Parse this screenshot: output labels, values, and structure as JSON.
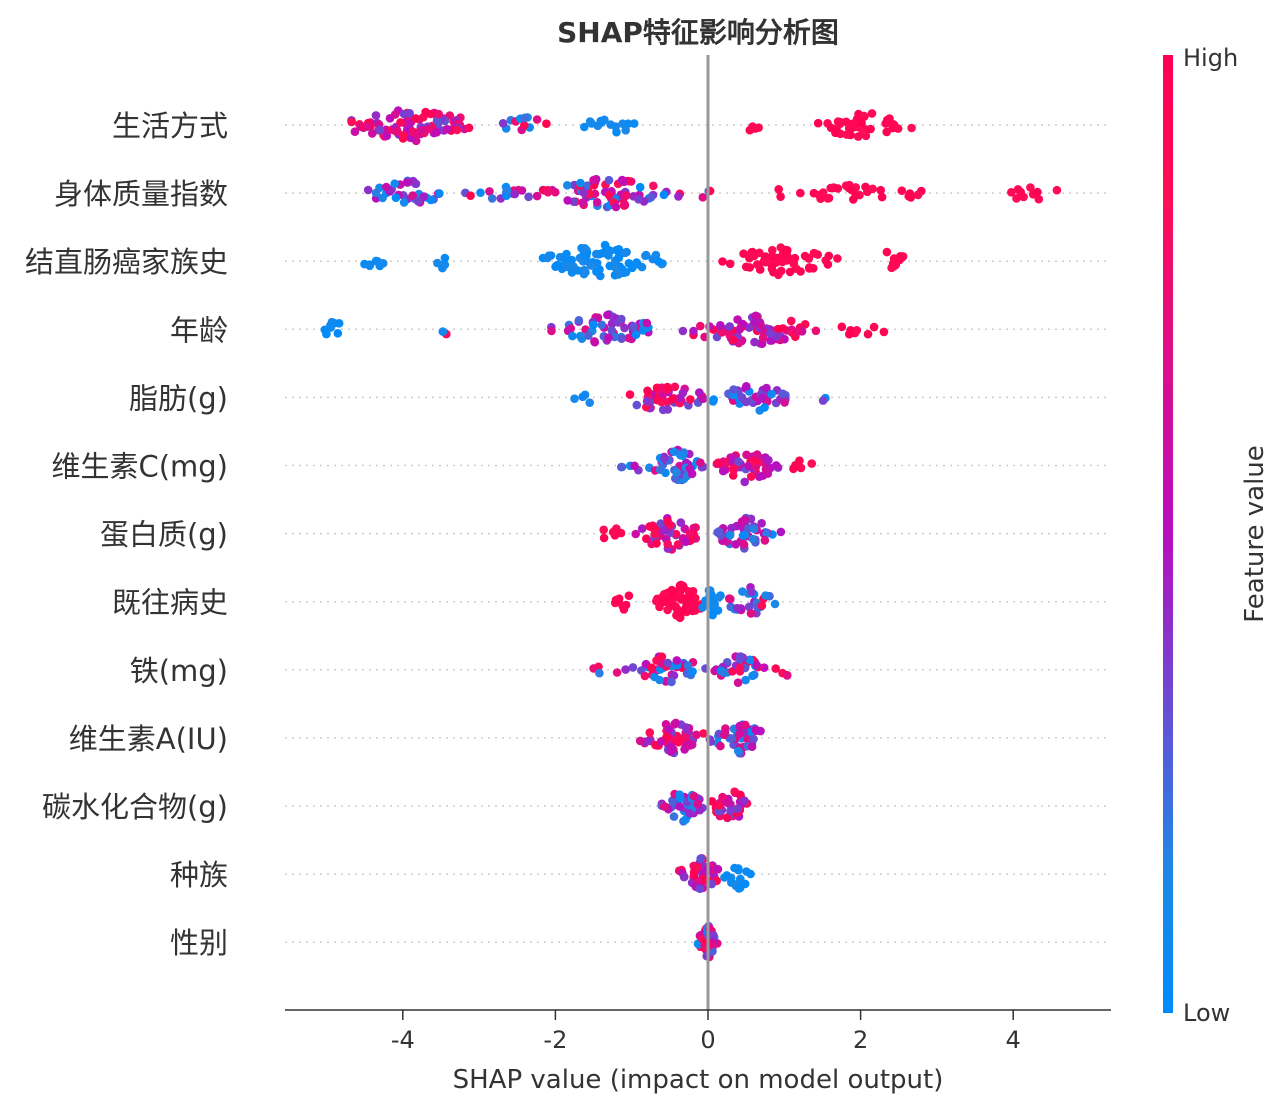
{
  "chart_data": {
    "type": "scatter",
    "subtype": "shap-beeswarm",
    "title": "SHAP特征影响分析图",
    "xlabel": "SHAP value (impact on model output)",
    "ylabel": "",
    "xlim": [
      -5.5,
      5.3
    ],
    "xticks": [
      -4,
      -2,
      0,
      2,
      4
    ],
    "xtick_labels": [
      "-4",
      "-2",
      "0",
      "2",
      "4"
    ],
    "grid": false,
    "colorbar": {
      "label": "Feature value",
      "high_label": "High",
      "low_label": "Low",
      "high_color": "#ff0d57",
      "mid_color": "#b80ec0",
      "low_color": "#1e88e5",
      "top_color": "#ff0052",
      "bottom_color": "#008bfb"
    },
    "features": [
      {
        "name": "生活方式",
        "groups": [
          {
            "range": [
              -4.9,
              -2.9
            ],
            "n": 90,
            "level": "mixed-red"
          },
          {
            "range": [
              -2.8,
              -2.0
            ],
            "n": 12,
            "level": "mixed"
          },
          {
            "range": [
              -1.7,
              -0.8
            ],
            "n": 14,
            "level": "low"
          },
          {
            "range": [
              0.5,
              0.7
            ],
            "n": 4,
            "level": "high"
          },
          {
            "range": [
              1.3,
              2.7
            ],
            "n": 45,
            "level": "high"
          }
        ]
      },
      {
        "name": "身体质量指数",
        "groups": [
          {
            "range": [
              -4.5,
              -3.3
            ],
            "n": 35,
            "level": "mixed-blue"
          },
          {
            "range": [
              -3.3,
              -2.2
            ],
            "n": 16,
            "level": "mixed"
          },
          {
            "range": [
              -2.3,
              -0.3
            ],
            "n": 75,
            "level": "mixed"
          },
          {
            "range": [
              -0.2,
              0.2
            ],
            "n": 3,
            "level": "mixed"
          },
          {
            "range": [
              0.7,
              3.0
            ],
            "n": 35,
            "level": "high"
          },
          {
            "range": [
              3.7,
              4.8
            ],
            "n": 12,
            "level": "high"
          }
        ]
      },
      {
        "name": "结直肠癌家族史",
        "groups": [
          {
            "range": [
              -4.6,
              -4.2
            ],
            "n": 8,
            "level": "low"
          },
          {
            "range": [
              -3.7,
              -3.3
            ],
            "n": 5,
            "level": "low"
          },
          {
            "range": [
              -2.4,
              -0.4
            ],
            "n": 80,
            "level": "low"
          },
          {
            "range": [
              0.1,
              1.8
            ],
            "n": 55,
            "level": "high"
          },
          {
            "range": [
              2.2,
              2.6
            ],
            "n": 10,
            "level": "high"
          }
        ]
      },
      {
        "name": "年龄",
        "groups": [
          {
            "range": [
              -5.1,
              -4.7
            ],
            "n": 8,
            "level": "low"
          },
          {
            "range": [
              -3.6,
              -3.3
            ],
            "n": 2,
            "level": "mixed"
          },
          {
            "range": [
              -2.1,
              -0.6
            ],
            "n": 55,
            "level": "mixed-blue"
          },
          {
            "range": [
              -0.4,
              1.5
            ],
            "n": 75,
            "level": "mixed-red"
          },
          {
            "range": [
              1.5,
              2.4
            ],
            "n": 8,
            "level": "high"
          }
        ]
      },
      {
        "name": "脂肪(g)",
        "groups": [
          {
            "range": [
              -1.8,
              -1.3
            ],
            "n": 4,
            "level": "low"
          },
          {
            "range": [
              -1.2,
              0.0
            ],
            "n": 40,
            "level": "mixed-red"
          },
          {
            "range": [
              0.0,
              1.2
            ],
            "n": 40,
            "level": "mixed-blue"
          },
          {
            "range": [
              1.3,
              1.7
            ],
            "n": 2,
            "level": "mixed"
          }
        ]
      },
      {
        "name": "维生素C(mg)",
        "groups": [
          {
            "range": [
              -1.2,
              -0.8
            ],
            "n": 5,
            "level": "mixed"
          },
          {
            "range": [
              -0.8,
              0.0
            ],
            "n": 45,
            "level": "mixed-blue"
          },
          {
            "range": [
              0.0,
              1.0
            ],
            "n": 50,
            "level": "mixed-red"
          },
          {
            "range": [
              1.0,
              1.4
            ],
            "n": 5,
            "level": "high"
          }
        ]
      },
      {
        "name": "蛋白质(g)",
        "groups": [
          {
            "range": [
              -1.5,
              -1.0
            ],
            "n": 6,
            "level": "high"
          },
          {
            "range": [
              -1.0,
              0.0
            ],
            "n": 50,
            "level": "mixed-red"
          },
          {
            "range": [
              0.0,
              1.0
            ],
            "n": 45,
            "level": "mixed-blue"
          }
        ]
      },
      {
        "name": "既往病史",
        "groups": [
          {
            "range": [
              -1.3,
              -0.9
            ],
            "n": 7,
            "level": "high"
          },
          {
            "range": [
              -0.7,
              0.0
            ],
            "n": 60,
            "level": "high"
          },
          {
            "range": [
              -0.1,
              0.2
            ],
            "n": 15,
            "level": "low"
          },
          {
            "range": [
              0.2,
              0.9
            ],
            "n": 25,
            "level": "mixed"
          }
        ]
      },
      {
        "name": "铁(mg)",
        "groups": [
          {
            "range": [
              -1.7,
              -1.1
            ],
            "n": 4,
            "level": "mixed"
          },
          {
            "range": [
              -1.1,
              0.0
            ],
            "n": 40,
            "level": "mixed"
          },
          {
            "range": [
              0.0,
              0.8
            ],
            "n": 35,
            "level": "mixed"
          },
          {
            "range": [
              0.8,
              1.2
            ],
            "n": 4,
            "level": "mixed"
          }
        ]
      },
      {
        "name": "维生素A(IU)",
        "groups": [
          {
            "range": [
              -0.9,
              0.0
            ],
            "n": 50,
            "level": "mixed-red"
          },
          {
            "range": [
              0.0,
              0.8
            ],
            "n": 45,
            "level": "mixed-blue"
          }
        ]
      },
      {
        "name": "碳水化合物(g)",
        "groups": [
          {
            "range": [
              -0.7,
              0.0
            ],
            "n": 40,
            "level": "mixed-blue"
          },
          {
            "range": [
              0.0,
              0.6
            ],
            "n": 40,
            "level": "mixed-red"
          }
        ]
      },
      {
        "name": "种族",
        "groups": [
          {
            "range": [
              -0.4,
              0.2
            ],
            "n": 45,
            "level": "mixed-red"
          },
          {
            "range": [
              0.2,
              0.6
            ],
            "n": 15,
            "level": "low"
          }
        ]
      },
      {
        "name": "性别",
        "groups": [
          {
            "range": [
              -0.15,
              0.15
            ],
            "n": 45,
            "level": "mixed"
          }
        ]
      }
    ]
  }
}
